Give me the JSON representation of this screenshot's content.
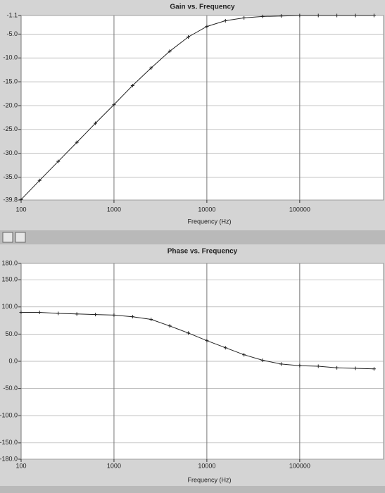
{
  "chart_data": [
    {
      "type": "line",
      "title": "Gain vs. Frequency",
      "x_label": "Frequency (Hz)",
      "x_scale": "log",
      "grid": true,
      "x": [
        100,
        158,
        251,
        398,
        631,
        1000,
        1585,
        2512,
        3981,
        6310,
        10000,
        15849,
        25119,
        39811,
        63096,
        100000,
        158489,
        251189,
        398107,
        630957
      ],
      "series": [
        {
          "name": "Gain",
          "color": "#222222",
          "values": [
            -39.7,
            -35.7,
            -31.7,
            -27.7,
            -23.7,
            -19.8,
            -15.8,
            -12.1,
            -8.6,
            -5.6,
            -3.4,
            -2.2,
            -1.6,
            -1.3,
            -1.2,
            -1.1,
            -1.1,
            -1.1,
            -1.1,
            -1.1
          ]
        }
      ],
      "xlim": [
        100,
        800000
      ],
      "xticks": [
        100,
        1000,
        10000,
        100000
      ],
      "ylim": [
        -39.8,
        -1.1
      ],
      "yticks": [
        -1.1,
        {
          "value": -5,
          "label": "-5.0"
        },
        {
          "value": -10,
          "label": "-10.0"
        },
        {
          "value": -15,
          "label": "-15.0"
        },
        {
          "value": -20,
          "label": "-20.0"
        },
        {
          "value": -25,
          "label": "-25.0"
        },
        {
          "value": -30,
          "label": "-30.0"
        },
        {
          "value": -35,
          "label": "-35.0"
        },
        -39.8
      ]
    },
    {
      "type": "line",
      "title": "Phase vs. Frequency",
      "x_label": "Frequency (Hz)",
      "x_scale": "log",
      "grid": true,
      "x": [
        100,
        158,
        251,
        398,
        631,
        1000,
        1585,
        2512,
        3981,
        6310,
        10000,
        15849,
        25119,
        39811,
        63096,
        100000,
        158489,
        251189,
        398107,
        630957
      ],
      "series": [
        {
          "name": "Phase",
          "color": "#222222",
          "values": [
            90,
            90,
            88,
            87,
            86,
            85,
            82,
            77,
            65,
            52,
            38,
            25,
            12,
            2,
            -5,
            -8,
            -9,
            -12,
            -13,
            -14
          ]
        }
      ],
      "xlim": [
        100,
        800000
      ],
      "xticks": [
        100,
        1000,
        10000,
        100000
      ],
      "ylim": [
        -180,
        180
      ],
      "yticks": [
        {
          "value": 180,
          "label": "180.0"
        },
        {
          "value": 150,
          "label": "150.0"
        },
        {
          "value": 100,
          "label": "100.0"
        },
        {
          "value": 50,
          "label": "50.0"
        },
        {
          "value": 0,
          "label": "0.0"
        },
        {
          "value": -50,
          "label": "-50.0"
        },
        {
          "value": -100,
          "label": "-100.0"
        },
        {
          "value": -150,
          "label": "-150.0"
        },
        {
          "value": -180,
          "label": "-180.0"
        }
      ]
    }
  ]
}
